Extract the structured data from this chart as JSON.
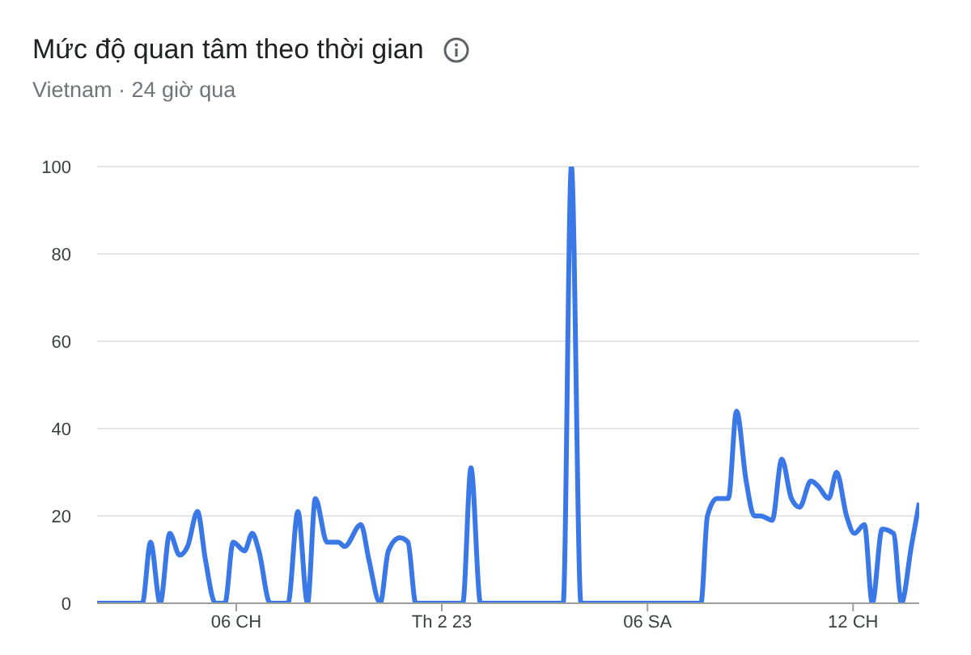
{
  "chart_data": {
    "type": "line",
    "title": "Mức độ quan tâm theo thời gian",
    "subtitle": "Vietnam · 24 giờ qua",
    "x": [
      -10.06,
      -8.74,
      -8.5,
      -8.22,
      -7.94,
      -7.65,
      -7.42,
      -7.13,
      -6.9,
      -6.61,
      -6.33,
      -6.09,
      -5.76,
      -5.53,
      -5.34,
      -5.01,
      -4.49,
      -4.2,
      -3.92,
      -3.69,
      -3.35,
      -3.02,
      -2.84,
      -2.36,
      -2.13,
      -1.8,
      -1.56,
      -1.23,
      -0.99,
      -0.76,
      0.61,
      0.85,
      1.13,
      3.54,
      3.78,
      4.06,
      7.56,
      7.75,
      8.03,
      8.36,
      8.6,
      8.88,
      9.12,
      9.3,
      9.64,
      9.92,
      10.2,
      10.44,
      10.77,
      10.96,
      11.29,
      11.52,
      11.81,
      12.04,
      12.33,
      12.56,
      12.85,
      13.18,
      13.41,
      13.7,
      13.93
    ],
    "series": [
      {
        "color": "#3b78e7",
        "values": [
          0,
          0,
          14,
          0,
          16,
          11,
          13,
          21,
          10,
          0,
          0,
          14,
          12,
          16,
          12,
          0,
          0,
          21,
          0,
          24,
          14,
          14,
          13,
          18,
          10,
          0,
          12,
          15,
          14,
          0,
          0,
          31,
          0,
          0,
          100,
          0,
          0,
          20,
          24,
          24,
          44,
          28,
          20,
          20,
          19,
          33,
          24,
          22,
          28,
          27,
          24,
          30,
          20,
          16,
          18,
          0,
          17,
          16,
          0,
          13,
          23
        ]
      }
    ],
    "xlim": [
      -10.06,
      13.93
    ],
    "xticks": [
      {
        "value": -6,
        "label": "06 CH"
      },
      {
        "value": 0,
        "label": "Th 2 23"
      },
      {
        "value": 6,
        "label": "06 SA"
      },
      {
        "value": 12,
        "label": "12 CH"
      }
    ],
    "ylim": [
      0,
      100
    ],
    "yticks": [
      0,
      20,
      40,
      60,
      80,
      100
    ],
    "grid": "y",
    "line_style": "solid"
  }
}
